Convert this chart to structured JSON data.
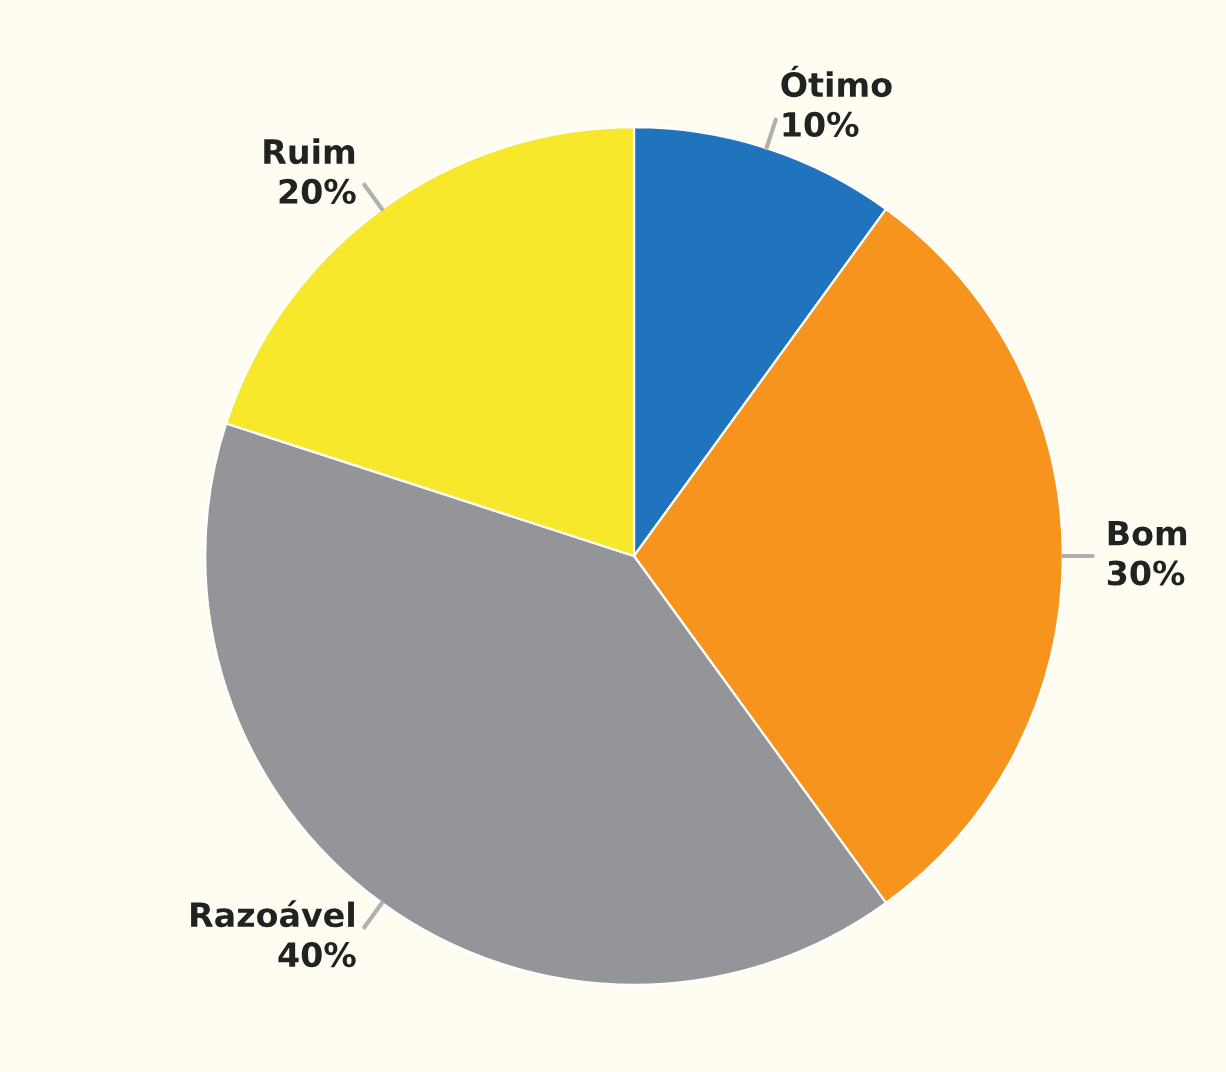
{
  "chart_data": {
    "type": "pie",
    "categories": [
      "Ótimo",
      "Bom",
      "Razoável",
      "Ruim"
    ],
    "values": [
      10,
      30,
      40,
      20
    ],
    "value_labels": [
      "10%",
      "30%",
      "40%",
      "20%"
    ],
    "colors": [
      "#1f74bd",
      "#f7941d",
      "#939598",
      "#f7e82c"
    ],
    "legend": false
  }
}
